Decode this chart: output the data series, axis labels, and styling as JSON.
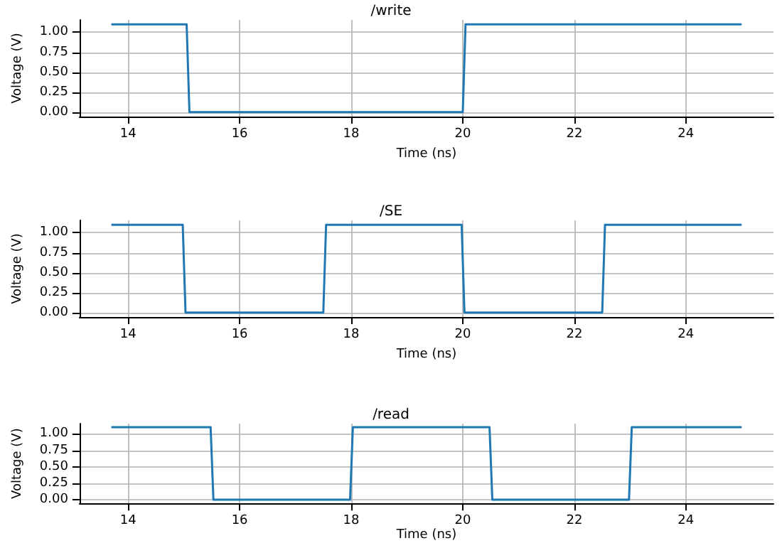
{
  "chart_data": [
    {
      "type": "line",
      "title": "/write",
      "xlabel": "Time (ns)",
      "ylabel": "Voltage (V)",
      "x": [
        13.7,
        15.05,
        15.1,
        20.0,
        20.05,
        25.0
      ],
      "values": [
        1.1,
        1.1,
        0,
        0,
        1.1,
        1.1
      ],
      "color": "#1f77b4",
      "xlim": [
        13.13,
        25.57
      ],
      "xticks": [
        14,
        16,
        18,
        20,
        22,
        24
      ],
      "ylim": [
        -0.055,
        1.155
      ],
      "yticks": [
        {
          "value": 0,
          "label": "0.00"
        },
        {
          "value": 0.25,
          "label": "0.25"
        },
        {
          "value": 0.5,
          "label": "0.50"
        },
        {
          "value": 0.75,
          "label": "0.75"
        },
        {
          "value": 1,
          "label": "1.00"
        }
      ],
      "grid": true
    },
    {
      "type": "line",
      "title": "/SE",
      "xlabel": "Time (ns)",
      "ylabel": "Voltage (V)",
      "x": [
        13.7,
        14.98,
        15.03,
        17.5,
        17.55,
        19.98,
        20.03,
        22.5,
        22.55,
        25.0
      ],
      "values": [
        1.1,
        1.1,
        0,
        0,
        1.1,
        1.1,
        0,
        0,
        1.1,
        1.1
      ],
      "color": "#1f77b4",
      "xlim": [
        13.13,
        25.57
      ],
      "xticks": [
        14,
        16,
        18,
        20,
        22,
        24
      ],
      "ylim": [
        -0.055,
        1.155
      ],
      "yticks": [
        {
          "value": 0,
          "label": "0.00"
        },
        {
          "value": 0.25,
          "label": "0.25"
        },
        {
          "value": 0.5,
          "label": "0.50"
        },
        {
          "value": 0.75,
          "label": "0.75"
        },
        {
          "value": 1,
          "label": "1.00"
        }
      ],
      "grid": true
    },
    {
      "type": "line",
      "title": "/read",
      "xlabel": "Time (ns)",
      "ylabel": "Voltage (V)",
      "x": [
        13.7,
        15.48,
        15.53,
        17.98,
        18.03,
        20.48,
        20.53,
        22.98,
        23.03,
        25.0
      ],
      "values": [
        1.1,
        1.1,
        0,
        0,
        1.1,
        1.1,
        0,
        0,
        1.1,
        1.1
      ],
      "color": "#1f77b4",
      "xlim": [
        13.13,
        25.57
      ],
      "xticks": [
        14,
        16,
        18,
        20,
        22,
        24
      ],
      "ylim": [
        -0.055,
        1.155
      ],
      "yticks": [
        {
          "value": 0,
          "label": "0.00"
        },
        {
          "value": 0.25,
          "label": "0.25"
        },
        {
          "value": 0.5,
          "label": "0.50"
        },
        {
          "value": 0.75,
          "label": "0.75"
        },
        {
          "value": 1,
          "label": "1.00"
        }
      ],
      "grid": true
    }
  ]
}
